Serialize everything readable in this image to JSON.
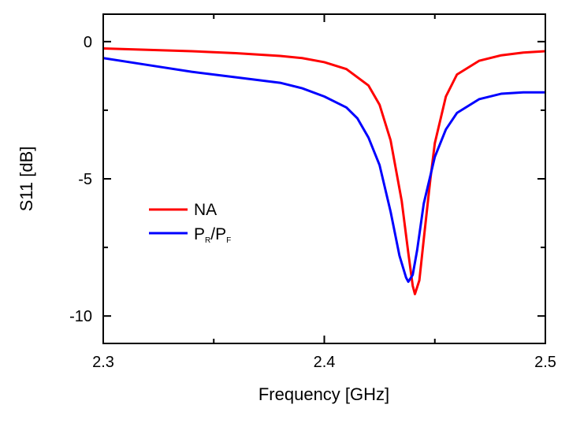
{
  "chart_data": {
    "type": "line",
    "title": "",
    "xlabel": "Frequency [GHz]",
    "ylabel": "S11 [dB]",
    "xlim": [
      2.3,
      2.5
    ],
    "ylim": [
      -11,
      1
    ],
    "xticks": [
      2.3,
      2.4,
      2.5
    ],
    "xtick_labels": [
      "2.3",
      "2.4",
      "2.5"
    ],
    "yticks": [
      0,
      -5,
      -10
    ],
    "ytick_labels": [
      "0",
      "-5",
      "-10"
    ],
    "grid": false,
    "legend_position": "left-center",
    "series": [
      {
        "name": "NA",
        "color": "#ff0000",
        "x": [
          2.3,
          2.32,
          2.34,
          2.36,
          2.38,
          2.39,
          2.4,
          2.41,
          2.42,
          2.425,
          2.43,
          2.435,
          2.438,
          2.44,
          2.441,
          2.443,
          2.445,
          2.448,
          2.45,
          2.455,
          2.46,
          2.47,
          2.48,
          2.49,
          2.5
        ],
        "y": [
          -0.25,
          -0.3,
          -0.35,
          -0.42,
          -0.52,
          -0.6,
          -0.75,
          -1.0,
          -1.6,
          -2.3,
          -3.6,
          -5.8,
          -7.7,
          -8.9,
          -9.2,
          -8.7,
          -7.2,
          -5.0,
          -3.7,
          -2.0,
          -1.2,
          -0.7,
          -0.5,
          -0.4,
          -0.35
        ]
      },
      {
        "name_parts": [
          "P",
          "R",
          "/P",
          "F"
        ],
        "color": "#0000ff",
        "x": [
          2.3,
          2.32,
          2.34,
          2.36,
          2.38,
          2.39,
          2.4,
          2.41,
          2.415,
          2.42,
          2.425,
          2.43,
          2.434,
          2.437,
          2.438,
          2.44,
          2.442,
          2.445,
          2.45,
          2.455,
          2.46,
          2.47,
          2.48,
          2.49,
          2.5
        ],
        "y": [
          -0.6,
          -0.85,
          -1.1,
          -1.3,
          -1.5,
          -1.7,
          -2.0,
          -2.4,
          -2.8,
          -3.5,
          -4.5,
          -6.2,
          -7.8,
          -8.6,
          -8.75,
          -8.5,
          -7.6,
          -5.9,
          -4.2,
          -3.2,
          -2.6,
          -2.1,
          -1.9,
          -1.85,
          -1.85
        ]
      }
    ]
  }
}
